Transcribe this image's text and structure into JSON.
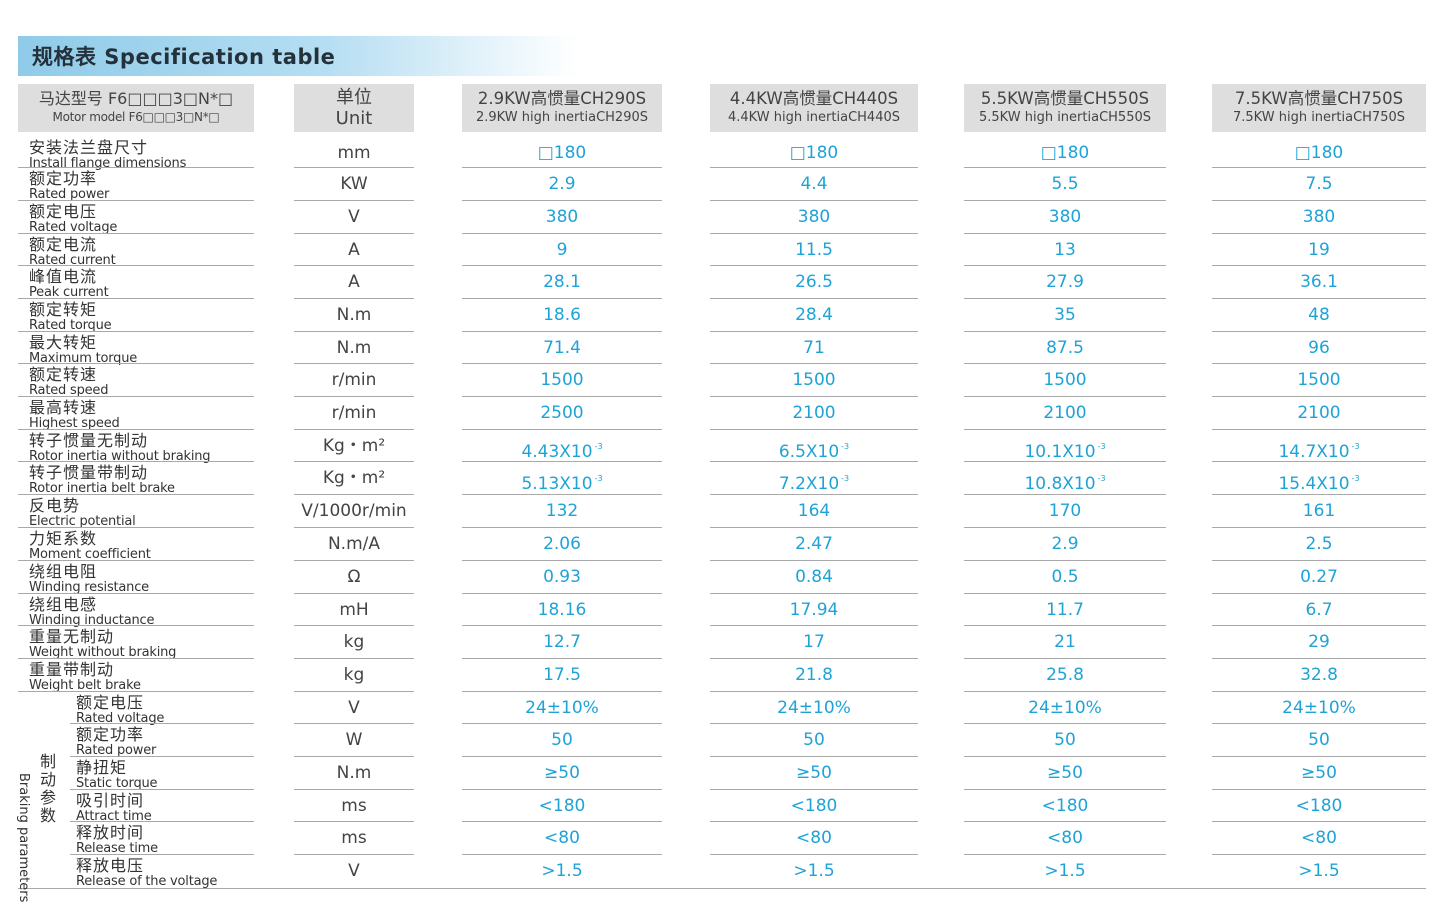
{
  "title": "规格表 Specification table",
  "header": {
    "motor_zh": "马达型号 F6□□□3□N*□",
    "motor_en": "Motor model F6□□□3□N*□",
    "unit_zh": "单位",
    "unit_en": "Unit",
    "models": [
      {
        "zh": "2.9KW高惯量CH290S",
        "en": "2.9KW high inertiaCH290S"
      },
      {
        "zh": "4.4KW高惯量CH440S",
        "en": "4.4KW high inertiaCH440S"
      },
      {
        "zh": "5.5KW高惯量CH550S",
        "en": "5.5KW high inertiaCH550S"
      },
      {
        "zh": "7.5KW高惯量CH750S",
        "en": "7.5KW high inertiaCH750S"
      }
    ]
  },
  "rows": [
    {
      "zh": "安装法兰盘尺寸",
      "en": "Install flange dimensions",
      "unit": "mm",
      "values": [
        "□180",
        "□180",
        "□180",
        "□180"
      ]
    },
    {
      "zh": "额定功率",
      "en": "Rated power",
      "unit": "KW",
      "values": [
        "2.9",
        "4.4",
        "5.5",
        "7.5"
      ]
    },
    {
      "zh": "额定电压",
      "en": "Rated voltage",
      "unit": "V",
      "values": [
        "380",
        "380",
        "380",
        "380"
      ]
    },
    {
      "zh": "额定电流",
      "en": "Rated current",
      "unit": "A",
      "values": [
        "9",
        "11.5",
        "13",
        "19"
      ]
    },
    {
      "zh": "峰值电流",
      "en": "Peak current",
      "unit": "A",
      "values": [
        "28.1",
        "26.5",
        "27.9",
        "36.1"
      ]
    },
    {
      "zh": "额定转矩",
      "en": "Rated torque",
      "unit": "N.m",
      "values": [
        "18.6",
        "28.4",
        "35",
        "48"
      ]
    },
    {
      "zh": "最大转矩",
      "en": "Maximum torque",
      "unit": "N.m",
      "values": [
        "71.4",
        "71",
        "87.5",
        "96"
      ]
    },
    {
      "zh": "额定转速",
      "en": "Rated speed",
      "unit": "r/min",
      "values": [
        "1500",
        "1500",
        "1500",
        "1500"
      ]
    },
    {
      "zh": "最高转速",
      "en": "Highest speed",
      "unit": "r/min",
      "values": [
        "2500",
        "2100",
        "2100",
        "2100"
      ]
    },
    {
      "zh": "转子惯量无制动",
      "en": "Rotor inertia without braking",
      "unit": "Kg・m²",
      "values": [
        "4.43X10",
        "6.5X10",
        "10.1X10",
        "14.7X10"
      ],
      "sup": "-3"
    },
    {
      "zh": "转子惯量带制动",
      "en": "Rotor inertia belt brake",
      "unit": "Kg・m²",
      "values": [
        "5.13X10",
        "7.2X10",
        "10.8X10",
        "15.4X10"
      ],
      "sup": "-3"
    },
    {
      "zh": "反电势",
      "en": "Electric potential",
      "unit": "V/1000r/min",
      "values": [
        "132",
        "164",
        "170",
        "161"
      ]
    },
    {
      "zh": "力矩系数",
      "en": "Moment coefficient",
      "unit": "N.m/A",
      "values": [
        "2.06",
        "2.47",
        "2.9",
        "2.5"
      ]
    },
    {
      "zh": "绕组电阻",
      "en": "Winding resistance",
      "unit": "Ω",
      "values": [
        "0.93",
        "0.84",
        "0.5",
        "0.27"
      ]
    },
    {
      "zh": "绕组电感",
      "en": "Winding inductance",
      "unit": "mH",
      "values": [
        "18.16",
        "17.94",
        "11.7",
        "6.7"
      ]
    },
    {
      "zh": "重量无制动",
      "en": "Weight without braking",
      "unit": "kg",
      "values": [
        "12.7",
        "17",
        "21",
        "29"
      ]
    },
    {
      "zh": "重量带制动",
      "en": "Weight belt brake",
      "unit": "kg",
      "values": [
        "17.5",
        "21.8",
        "25.8",
        "32.8"
      ]
    }
  ],
  "brake_group": {
    "zh": "制动参数",
    "en": "Braking parameters"
  },
  "brake_rows": [
    {
      "zh": "额定电压",
      "en": "Rated voltage",
      "unit": "V",
      "values": [
        "24±10%",
        "24±10%",
        "24±10%",
        "24±10%"
      ]
    },
    {
      "zh": "额定功率",
      "en": "Rated power",
      "unit": "W",
      "values": [
        "50",
        "50",
        "50",
        "50"
      ]
    },
    {
      "zh": "静扭矩",
      "en": "Static torque",
      "unit": "N.m",
      "values": [
        "≥50",
        "≥50",
        "≥50",
        "≥50"
      ]
    },
    {
      "zh": "吸引时间",
      "en": "Attract time",
      "unit": "ms",
      "values": [
        "<180",
        "<180",
        "<180",
        "<180"
      ]
    },
    {
      "zh": "释放时间",
      "en": "Release time",
      "unit": "ms",
      "values": [
        "<80",
        "<80",
        "<80",
        "<80"
      ]
    },
    {
      "zh": "释放电压",
      "en": "Release of the voltage",
      "unit": "V",
      "values": [
        ">1.5",
        ">1.5",
        ">1.5",
        ">1.5"
      ]
    }
  ]
}
